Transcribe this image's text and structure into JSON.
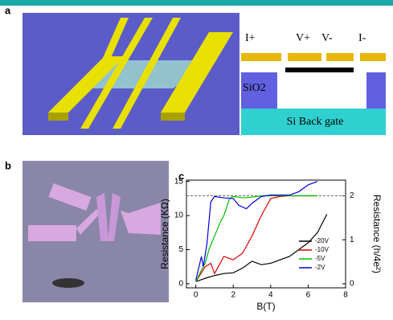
{
  "figure": {
    "panel_labels": [
      "a",
      "b",
      "c"
    ],
    "schematic": {
      "contacts": [
        "I+",
        "V+",
        "V-",
        "I-"
      ],
      "oxide": "SiO2",
      "gate": "Si Back gate"
    }
  },
  "chart_data": {
    "type": "line",
    "xlabel": "B(T)",
    "ylabel": "Resistance (KΩ)",
    "y2label": "Resistance (h/4e²)",
    "xlim": [
      -0.5,
      8
    ],
    "xticks": [
      0,
      2,
      4,
      6,
      8
    ],
    "ylim": [
      -0.6,
      15.2
    ],
    "yticks": [
      0,
      5,
      10,
      15
    ],
    "y2lim": [
      -0.093,
      2.357
    ],
    "y2ticks": [
      0,
      1,
      2
    ],
    "reference_line": 12.9,
    "series": [
      {
        "name": "-20V",
        "color": "#000000",
        "x": [
          0,
          0.5,
          1,
          1.5,
          2,
          2.5,
          3,
          3.5,
          4,
          4.5,
          5,
          5.5,
          6,
          6.5,
          7
        ],
        "values": [
          0.3,
          0.8,
          1.2,
          1.5,
          1.6,
          2.3,
          3.3,
          2.8,
          3.0,
          3.5,
          4.0,
          5.0,
          6.0,
          7.5,
          10.2
        ]
      },
      {
        "name": "-10V",
        "color": "#e00000",
        "x": [
          0,
          0.5,
          0.8,
          1,
          1.5,
          2,
          2.5,
          3,
          3.5,
          4,
          4.5,
          5,
          6,
          6.5
        ],
        "values": [
          0.3,
          2.5,
          3.0,
          1.5,
          4.0,
          3.5,
          4.5,
          7.0,
          10.0,
          12.5,
          12.8,
          12.9,
          12.9,
          12.9
        ]
      },
      {
        "name": "-5V",
        "color": "#00c000",
        "x": [
          0,
          0.3,
          0.5,
          0.7,
          1,
          1.3,
          1.5,
          1.8,
          2,
          2.5,
          3,
          3.5,
          5,
          6.5
        ],
        "values": [
          0.3,
          2.0,
          3.0,
          5.0,
          7.0,
          9.0,
          10.0,
          12.5,
          12.8,
          12.6,
          12.7,
          12.9,
          12.9,
          12.9
        ]
      },
      {
        "name": "-2V",
        "color": "#0000e0",
        "x": [
          0,
          0.3,
          0.4,
          0.6,
          0.8,
          1,
          1.5,
          2,
          2.3,
          2.7,
          3,
          3.5,
          4,
          5,
          5.5,
          6,
          6.5
        ],
        "values": [
          0.5,
          4.0,
          2.5,
          6.0,
          12.0,
          12.8,
          12.6,
          12.5,
          11.5,
          11.0,
          11.8,
          12.8,
          13.0,
          13.0,
          13.5,
          14.5,
          15.0
        ]
      }
    ]
  }
}
